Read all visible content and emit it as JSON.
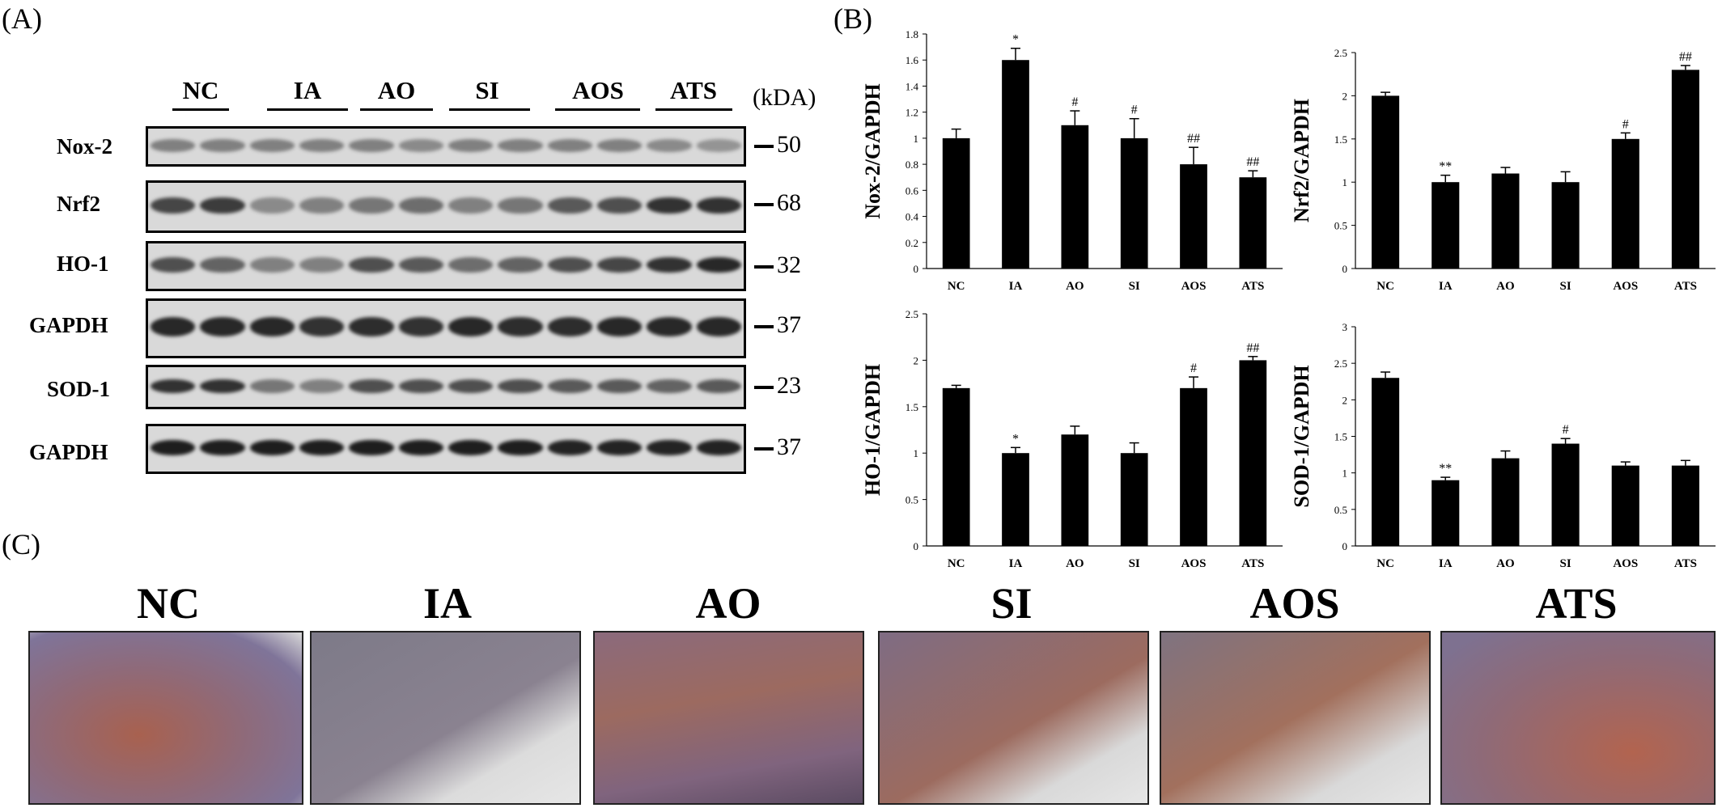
{
  "panels": {
    "a": "(A)",
    "b": "(B)",
    "c": "(C)"
  },
  "groups": [
    "NC",
    "IA",
    "AO",
    "SI",
    "AOS",
    "ATS"
  ],
  "kda_label": "(kDA)",
  "blots": [
    {
      "label": "Nox-2",
      "mw": "50"
    },
    {
      "label": "Nrf2",
      "mw": "68"
    },
    {
      "label": "HO-1",
      "mw": "32"
    },
    {
      "label": "GAPDH",
      "mw": "37"
    },
    {
      "label": "SOD-1",
      "mw": "23"
    },
    {
      "label": "GAPDH",
      "mw": "37"
    }
  ],
  "ihc_labels": [
    "NC",
    "IA",
    "AO",
    "SI",
    "AOS",
    "ATS"
  ],
  "chart_data": [
    {
      "type": "bar",
      "ylabel": "Nox-2/GAPDH",
      "categories": [
        "NC",
        "IA",
        "AO",
        "SI",
        "AOS",
        "ATS"
      ],
      "values": [
        1.0,
        1.6,
        1.1,
        1.0,
        0.8,
        0.7
      ],
      "errors": [
        0.07,
        0.09,
        0.11,
        0.15,
        0.13,
        0.05
      ],
      "annotations": [
        "",
        "*",
        "#",
        "#",
        "##",
        "##"
      ],
      "yticks": [
        "0",
        "0.2",
        "0.4",
        "0.6",
        "0.8",
        "1",
        "1.2",
        "1.4",
        "1.6",
        "1.8"
      ],
      "ylim": [
        0,
        1.8
      ]
    },
    {
      "type": "bar",
      "ylabel": "Nrf2/GAPDH",
      "categories": [
        "NC",
        "IA",
        "AO",
        "SI",
        "AOS",
        "ATS"
      ],
      "values": [
        2.0,
        1.0,
        1.1,
        1.0,
        1.5,
        2.3
      ],
      "errors": [
        0.04,
        0.08,
        0.07,
        0.12,
        0.07,
        0.05
      ],
      "annotations": [
        "",
        "**",
        "",
        "",
        "#",
        "##"
      ],
      "yticks": [
        "0",
        "0.5",
        "1",
        "1.5",
        "2",
        "2.5"
      ],
      "ylim": [
        0,
        2.5
      ]
    },
    {
      "type": "bar",
      "ylabel": "HO-1/GAPDH",
      "categories": [
        "NC",
        "IA",
        "AO",
        "SI",
        "AOS",
        "ATS"
      ],
      "values": [
        1.7,
        1.0,
        1.2,
        1.0,
        1.7,
        2.0
      ],
      "errors": [
        0.03,
        0.06,
        0.09,
        0.11,
        0.12,
        0.04
      ],
      "annotations": [
        "",
        "*",
        "",
        "",
        "#",
        "##"
      ],
      "yticks": [
        "0",
        "0.5",
        "1",
        "1.5",
        "2",
        "2.5"
      ],
      "ylim": [
        0,
        2.5
      ]
    },
    {
      "type": "bar",
      "ylabel": "SOD-1/GAPDH",
      "categories": [
        "NC",
        "IA",
        "AO",
        "SI",
        "AOS",
        "ATS"
      ],
      "values": [
        2.3,
        0.9,
        1.2,
        1.4,
        1.1,
        1.1
      ],
      "errors": [
        0.08,
        0.04,
        0.1,
        0.07,
        0.05,
        0.07
      ],
      "annotations": [
        "",
        "**",
        "",
        "#",
        "",
        ""
      ],
      "yticks": [
        "0",
        "0.5",
        "1",
        "1.5",
        "2",
        "2.5",
        "3"
      ],
      "ylim": [
        0,
        3
      ]
    }
  ]
}
